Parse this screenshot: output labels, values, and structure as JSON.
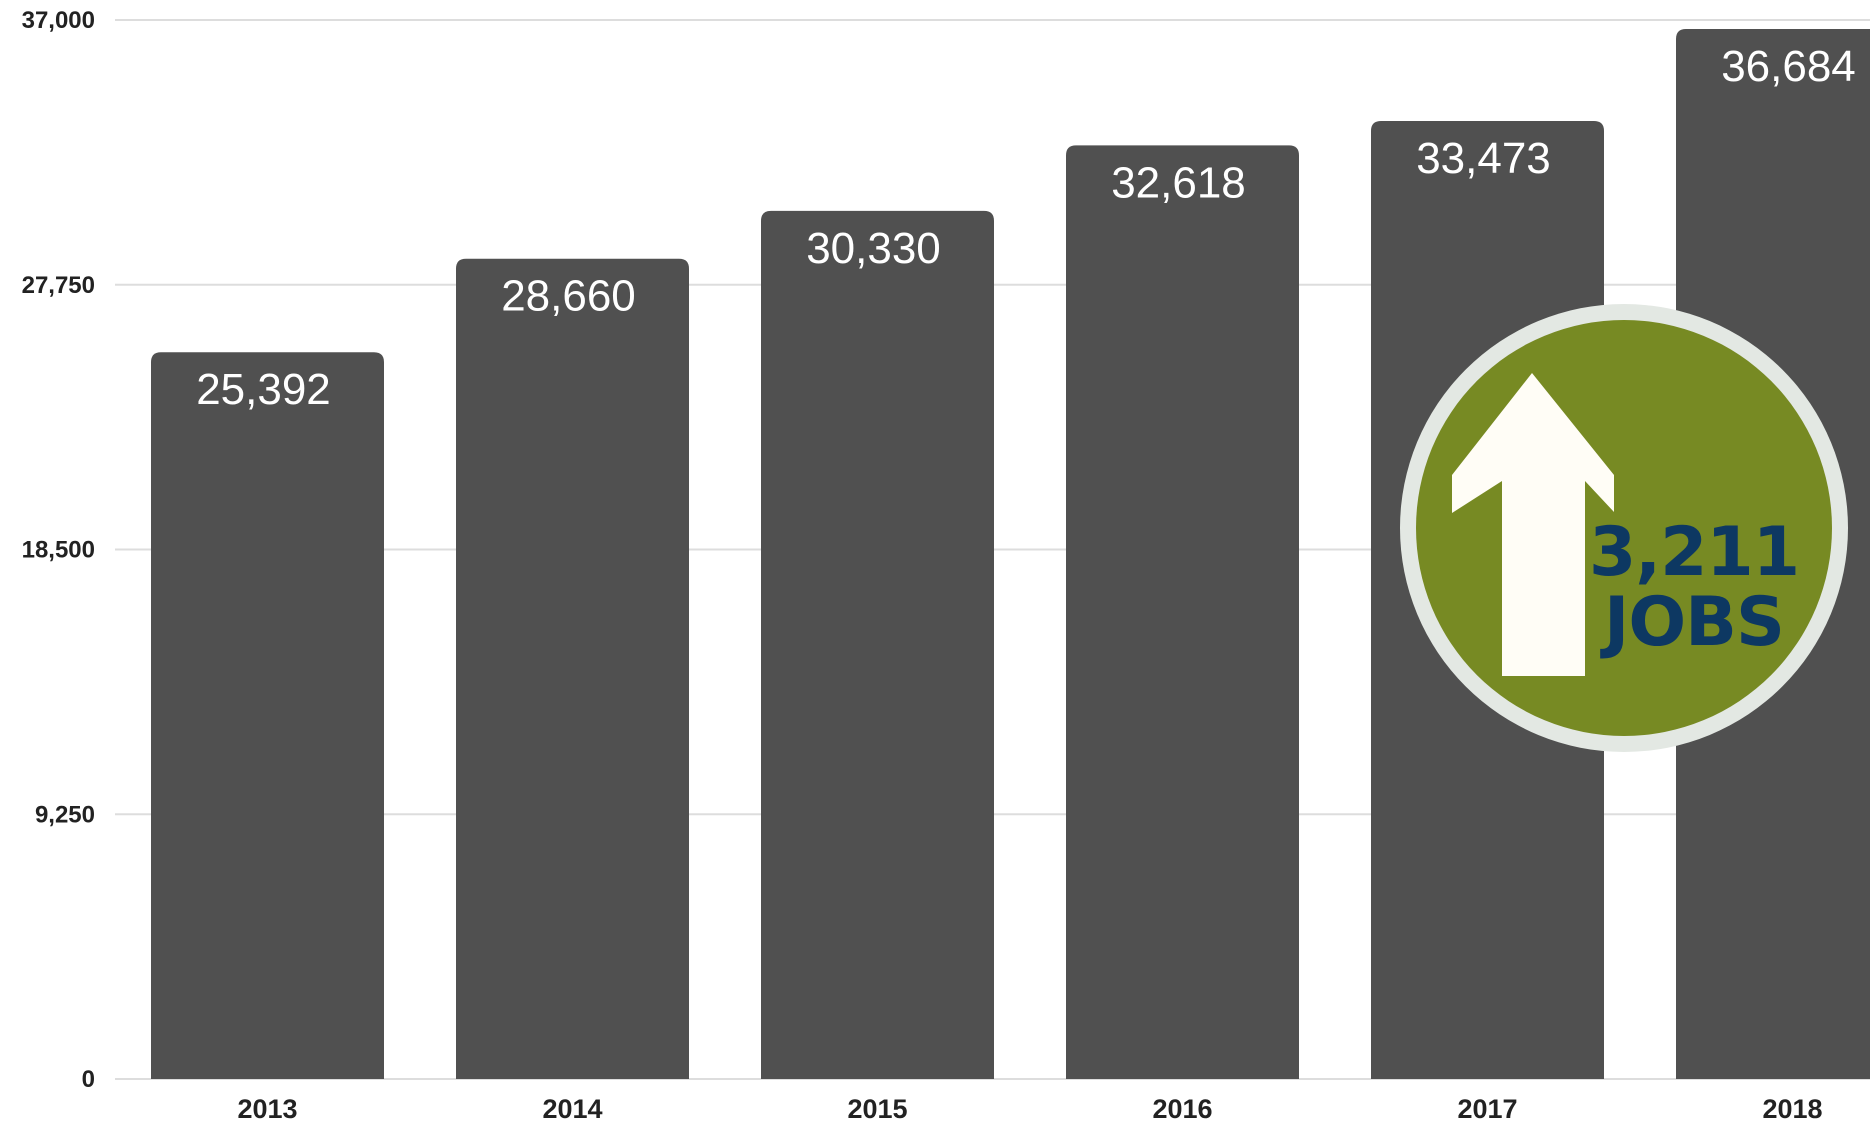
{
  "chart_data": {
    "type": "bar",
    "categories": [
      "2013",
      "2014",
      "2015",
      "2016",
      "2017",
      "2018"
    ],
    "values": [
      25392,
      28660,
      30330,
      32618,
      33473,
      36684
    ],
    "value_labels": [
      "25,392",
      "28,660",
      "30,330",
      "32,618",
      "33,473",
      "36,684"
    ],
    "title": "",
    "xlabel": "",
    "ylabel": "",
    "ylim": [
      0,
      37000
    ],
    "yticks": [
      0,
      9250,
      18500,
      27750,
      37000
    ],
    "ytick_labels": [
      "0",
      "9,250",
      "18,500",
      "27,750",
      "37,000"
    ],
    "grid": true,
    "legend": "none"
  },
  "callout": {
    "value": "3,211",
    "unit": "JOBS",
    "icon": "up-arrow-icon"
  },
  "colors": {
    "bar": "#505050",
    "bar_label": "#ffffff",
    "grid": "#dddddd",
    "axis_text": "#222222",
    "callout_fill": "#778a23",
    "callout_ring": "#e3e8e3",
    "callout_arrow": "#fffdf6",
    "callout_text": "#0d3862"
  }
}
